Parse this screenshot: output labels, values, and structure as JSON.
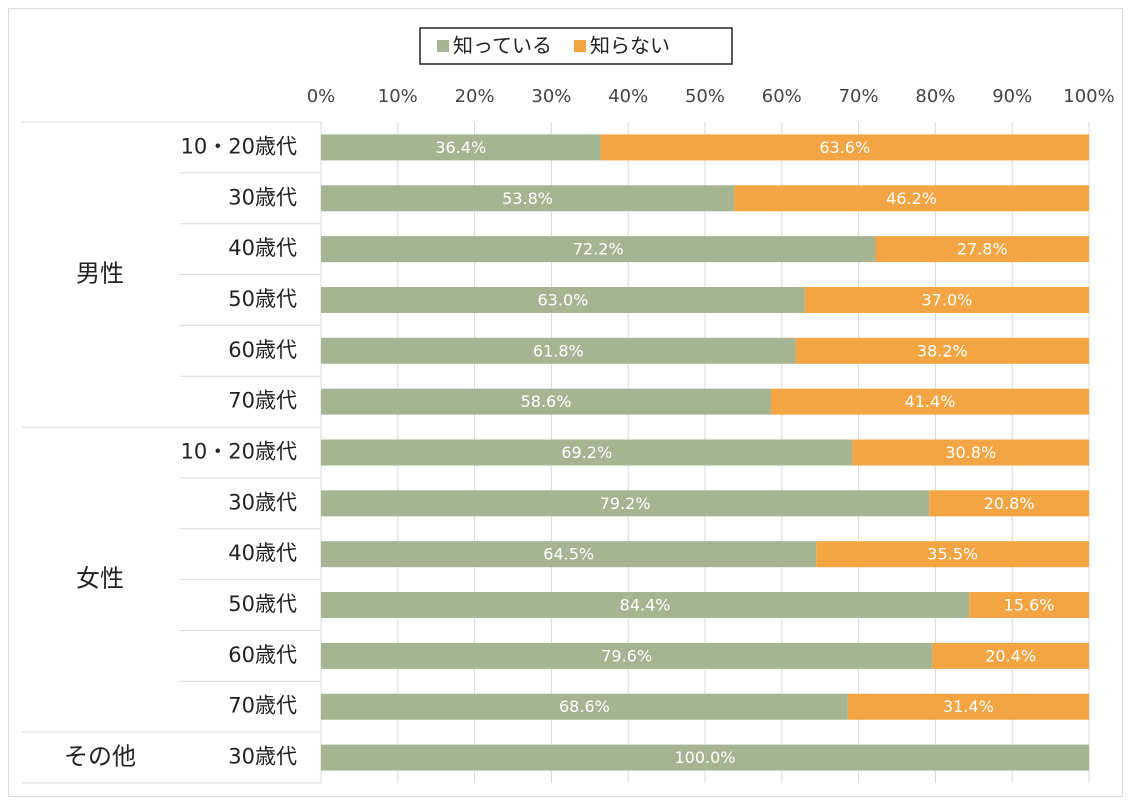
{
  "chart_data": {
    "type": "stacked_barh",
    "legend": "top",
    "groups": [
      {
        "name": "男性",
        "span": 6
      },
      {
        "name": "女性",
        "span": 6
      },
      {
        "name": "その他",
        "span": 1
      }
    ],
    "categories": [
      "10・20歳代",
      "30歳代",
      "40歳代",
      "50歳代",
      "60歳代",
      "70歳代",
      "10・20歳代",
      "30歳代",
      "40歳代",
      "50歳代",
      "60歳代",
      "70歳代",
      "30歳代"
    ],
    "series": [
      {
        "name": "知っている",
        "color": "#a5b592",
        "values": [
          36.4,
          53.8,
          72.2,
          63.0,
          61.8,
          58.6,
          69.2,
          79.2,
          64.5,
          84.4,
          79.6,
          68.6,
          100.0
        ],
        "value_labels": [
          "36.4%",
          "53.8%",
          "72.2%",
          "63.0%",
          "61.8%",
          "58.6%",
          "69.2%",
          "79.2%",
          "64.5%",
          "84.4%",
          "79.6%",
          "68.6%",
          "100.0%"
        ]
      },
      {
        "name": "知らない",
        "color": "#f4a543",
        "values": [
          63.6,
          46.2,
          27.8,
          37.0,
          38.2,
          41.4,
          30.8,
          20.8,
          35.5,
          15.6,
          20.4,
          31.4,
          null
        ],
        "value_labels": [
          "63.6%",
          "46.2%",
          "27.8%",
          "37.0%",
          "38.2%",
          "41.4%",
          "30.8%",
          "20.8%",
          "35.5%",
          "15.6%",
          "20.4%",
          "31.4%",
          null
        ]
      }
    ],
    "xlim": [
      0,
      100
    ],
    "xticks": [
      {
        "value": 0,
        "label": "0%"
      },
      {
        "value": 10,
        "label": "10%"
      },
      {
        "value": 20,
        "label": "20%"
      },
      {
        "value": 30,
        "label": "30%"
      },
      {
        "value": 40,
        "label": "40%"
      },
      {
        "value": 50,
        "label": "50%"
      },
      {
        "value": 60,
        "label": "60%"
      },
      {
        "value": 70,
        "label": "70%"
      },
      {
        "value": 80,
        "label": "80%"
      },
      {
        "value": 90,
        "label": "90%"
      },
      {
        "value": 100,
        "label": "100%"
      }
    ],
    "grid": true
  }
}
